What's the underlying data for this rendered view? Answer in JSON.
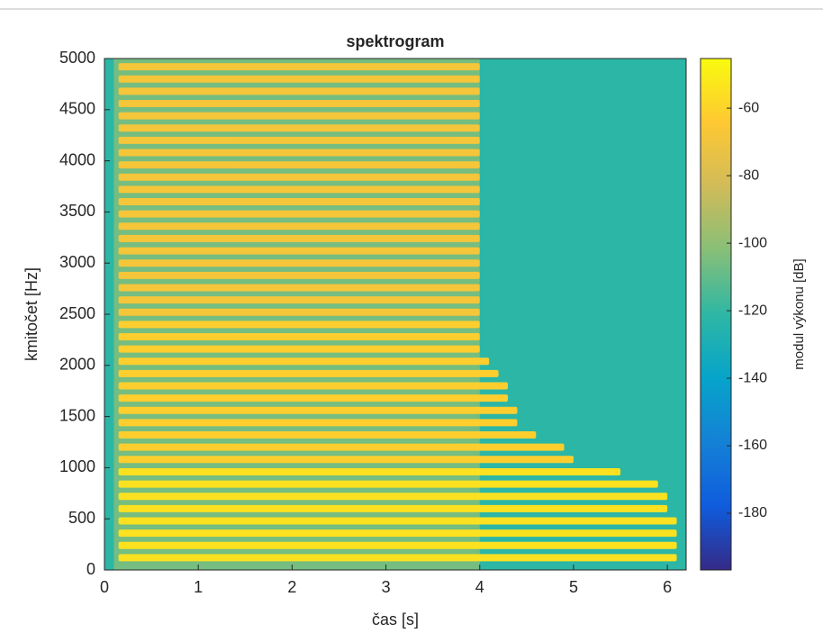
{
  "chart_data": {
    "type": "spectrogram",
    "title": "spektrogram",
    "xlabel": "čas [s]",
    "ylabel": "kmitočet [Hz]",
    "colorbar_label": "modul výkonu [dB]",
    "xlim": [
      0,
      6.2
    ],
    "xticks": [
      0,
      1,
      2,
      3,
      4,
      5,
      6
    ],
    "ylim": [
      0,
      5000
    ],
    "yticks": [
      0,
      500,
      1000,
      1500,
      2000,
      2500,
      3000,
      3500,
      4000,
      4500,
      5000
    ],
    "clim": [
      -196.8,
      -45.3
    ],
    "cticks": [
      -180,
      -160,
      -140,
      -120,
      -100,
      -80,
      -60
    ],
    "colormap": [
      "#352a87",
      "#0f5cdd",
      "#1481d6",
      "#06a4ca",
      "#2eb7a4",
      "#87bf77",
      "#d1bb59",
      "#fec832",
      "#f9fb0e"
    ],
    "noise_level": -122,
    "broadband": {
      "start": 0.1,
      "end": 4.0,
      "level": -106
    },
    "start": 0.15,
    "harmonics": {
      "frequency": [
        120,
        240,
        360,
        480,
        600,
        720,
        840,
        960,
        1080,
        1200,
        1320,
        1440,
        1560,
        1680,
        1800,
        1920,
        2040,
        2160,
        2280,
        2400,
        2520,
        2640,
        2760,
        2880,
        3000,
        3120,
        3240,
        3360,
        3480,
        3600,
        3720,
        3840,
        3960,
        4080,
        4200,
        4320,
        4440,
        4560,
        4680,
        4800,
        4920
      ],
      "end": [
        6.1,
        6.1,
        6.1,
        6.1,
        6.0,
        6.0,
        5.9,
        5.5,
        5.0,
        4.9,
        4.6,
        4.4,
        4.4,
        4.3,
        4.3,
        4.2,
        4.1,
        4.0,
        4.0,
        4.0,
        4.0,
        4.0,
        4.0,
        4.0,
        4.0,
        4.0,
        4.0,
        4.0,
        4.0,
        4.0,
        4.0,
        4.0,
        4.0,
        4.0,
        4.0,
        4.0,
        4.0,
        4.0,
        4.0,
        4.0,
        4.0
      ],
      "level": [
        -55,
        -55,
        -55,
        -55,
        -55,
        -55,
        -55,
        -55,
        -62,
        -62,
        -62,
        -62,
        -62,
        -62,
        -62,
        -62,
        -62,
        -62,
        -62,
        -62,
        -68,
        -68,
        -68,
        -68,
        -68,
        -68,
        -68,
        -68,
        -68,
        -68,
        -68,
        -68,
        -68,
        -68,
        -68,
        -68,
        -68,
        -68,
        -68,
        -68,
        -68
      ]
    },
    "grid": false
  }
}
